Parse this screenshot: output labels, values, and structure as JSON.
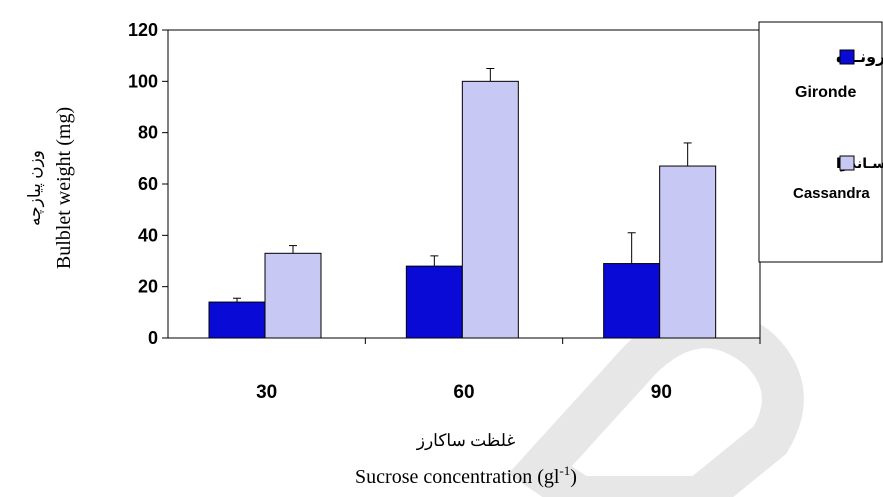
{
  "chart_data": {
    "type": "bar",
    "categories": [
      "30",
      "60",
      "90"
    ],
    "series": [
      {
        "name": "Gironde",
        "name_fa": "ژیرونـده",
        "color": "#0a0ad6",
        "values": [
          14,
          28,
          29
        ],
        "errors": [
          1.5,
          4,
          12
        ]
      },
      {
        "name": "Cassandra",
        "name_fa": "کاسـاندرا",
        "color": "#c8c8f5",
        "values": [
          33,
          100,
          67
        ],
        "errors": [
          3,
          5,
          9
        ]
      }
    ],
    "yticks": [
      "0",
      "20",
      "40",
      "60",
      "80",
      "100",
      "120"
    ],
    "ylim": [
      0,
      120
    ],
    "ylabel": "Bulblet weight (mg)",
    "ylabel_fa": "وزن پیازچه",
    "xlabel_fa": "غلظت ساکارز",
    "xlabel": "Sucrose concentration (gl",
    "xlabel_sup": "-1",
    "xlabel_end": ")",
    "legend_position": "right",
    "grid": false
  }
}
